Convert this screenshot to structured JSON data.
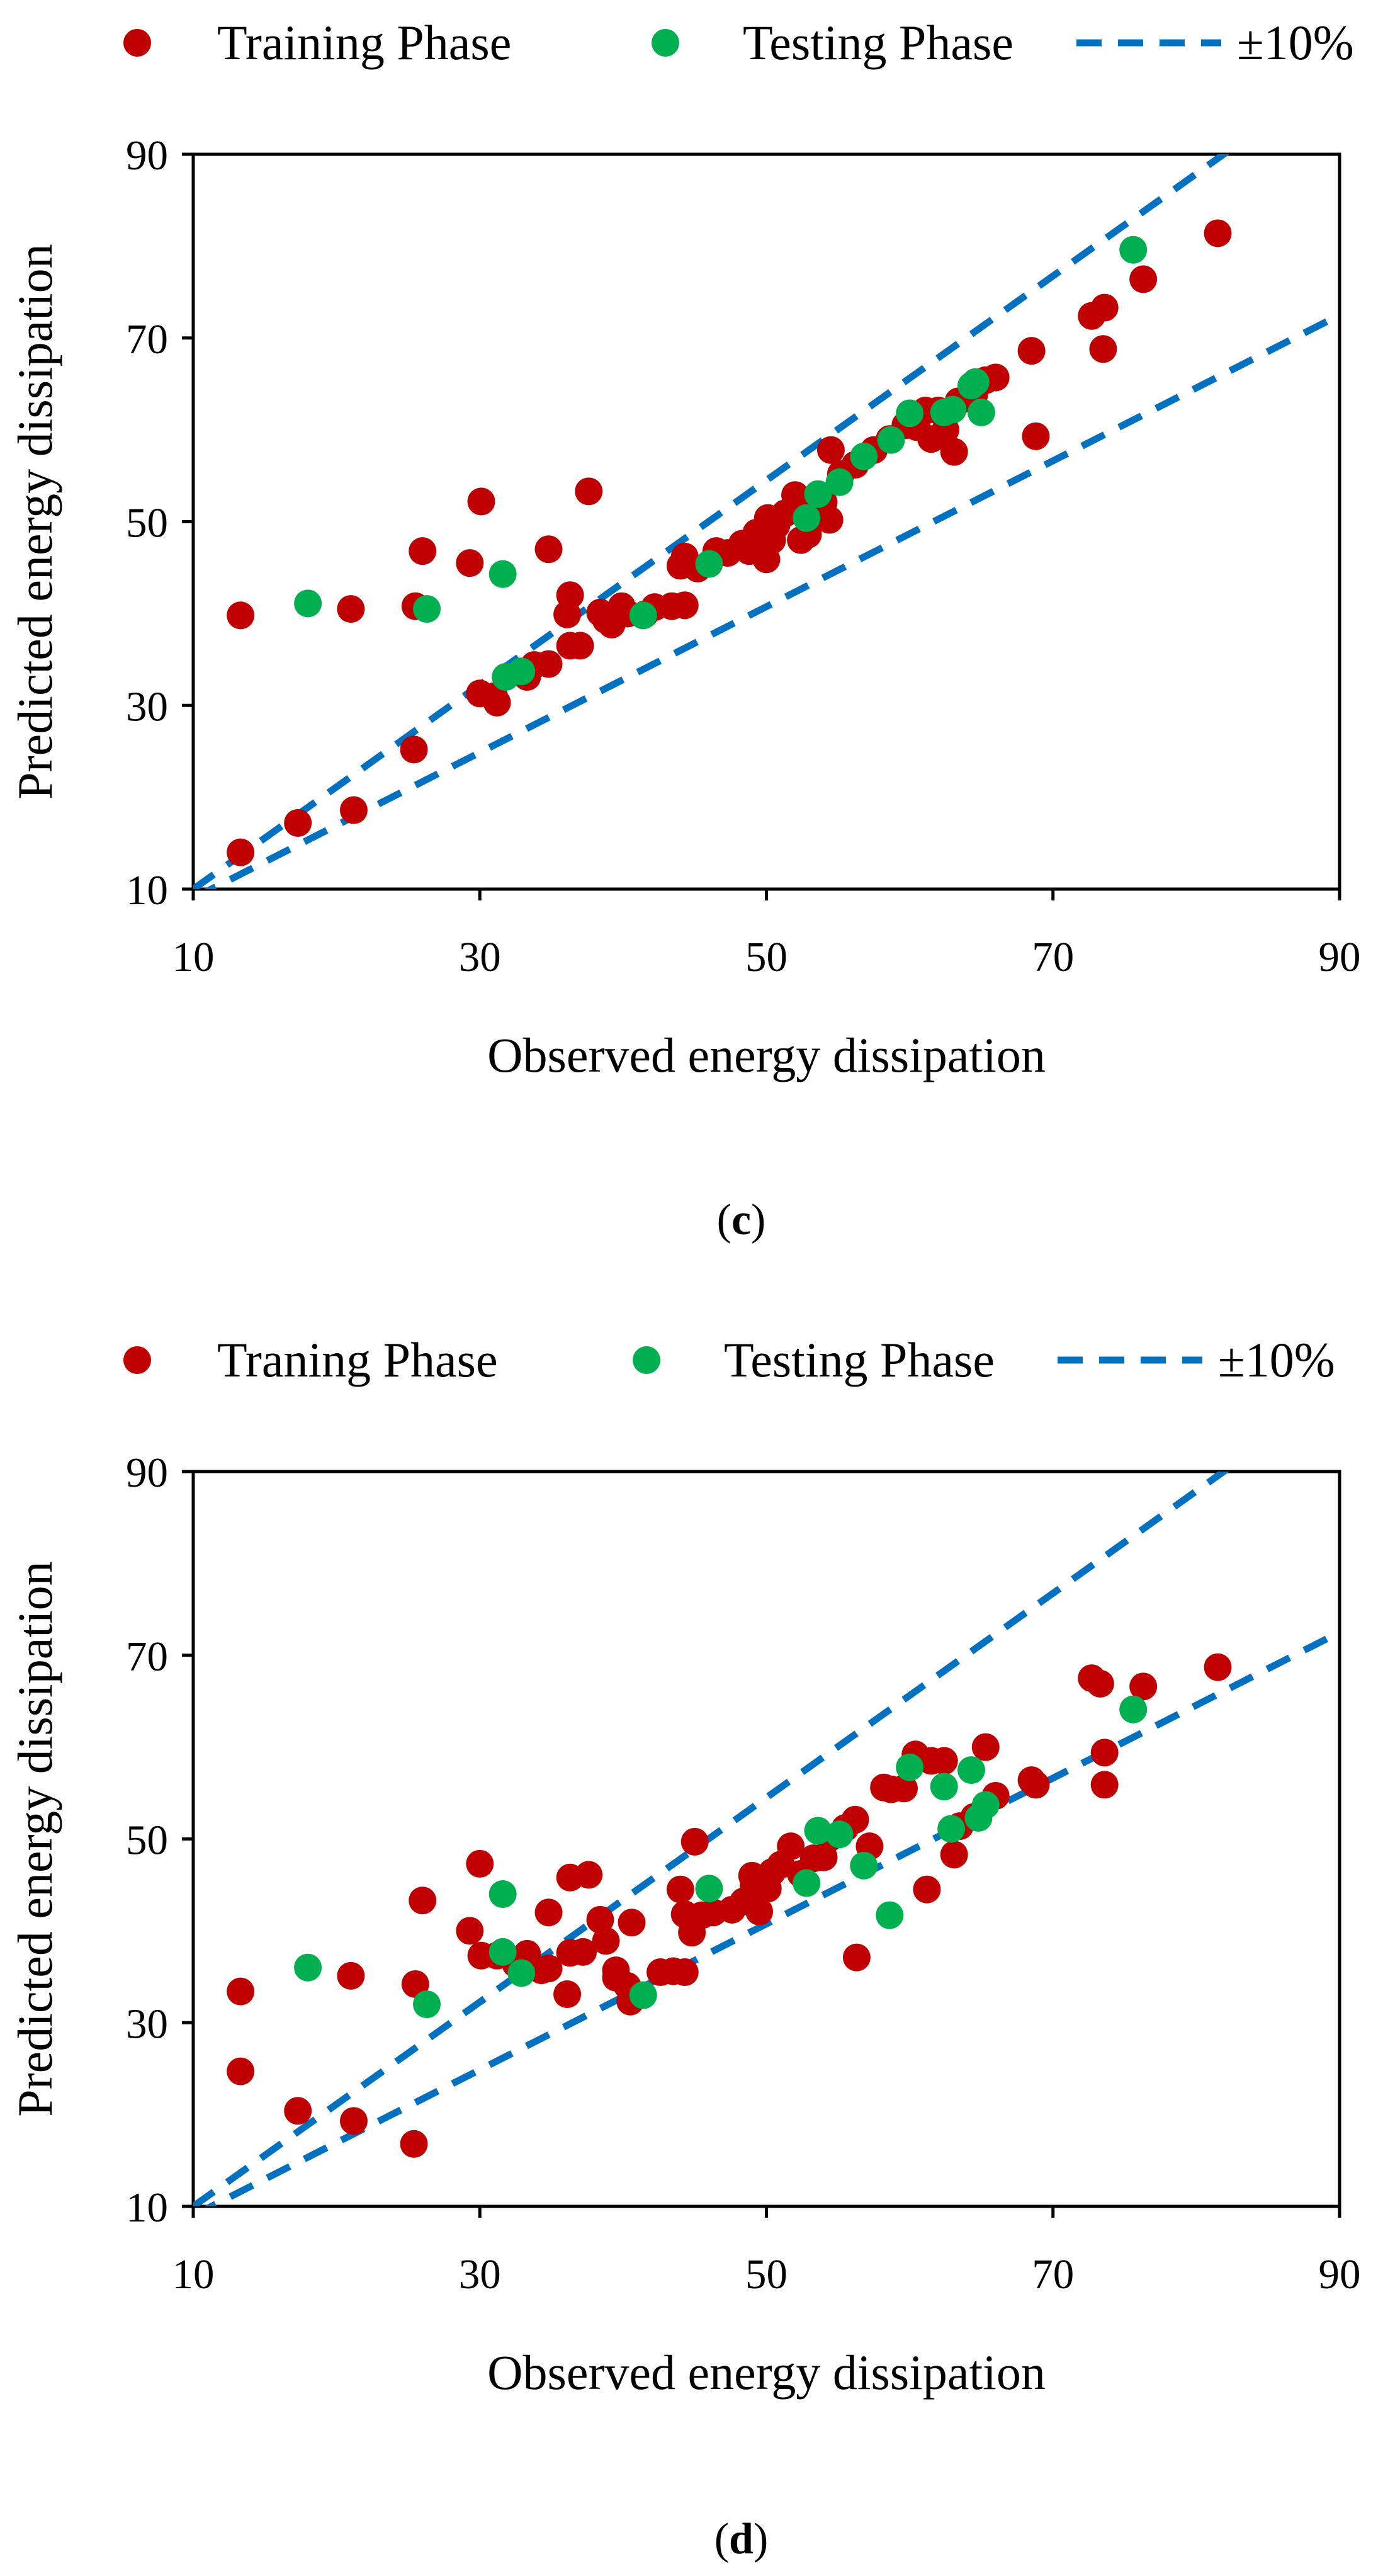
{
  "chart_data": [
    {
      "type": "scatter",
      "caption": {
        "open": "(",
        "letter": "c",
        "close": ")"
      },
      "xlabel": "Observed energy dissipation",
      "ylabel": "Predicted energy dissipation",
      "xlim": [
        10,
        90
      ],
      "ylim": [
        10,
        90
      ],
      "xticks": [
        "10",
        "30",
        "50",
        "70",
        "90"
      ],
      "yticks": [
        "10",
        "30",
        "50",
        "70",
        "90"
      ],
      "grid": false,
      "legend_position": "top",
      "series": [
        {
          "name": "Training Phase",
          "kind": "points",
          "color": "#C00000",
          "points": [
            [
              13.3,
              14.0
            ],
            [
              17.3,
              17.2
            ],
            [
              21.2,
              18.6
            ],
            [
              13.3,
              39.8
            ],
            [
              21.0,
              40.5
            ],
            [
              25.4,
              25.2
            ],
            [
              25.5,
              40.8
            ],
            [
              26.0,
              46.8
            ],
            [
              29.3,
              45.5
            ],
            [
              30.0,
              31.3
            ],
            [
              30.1,
              52.2
            ],
            [
              31.0,
              31.0
            ],
            [
              31.2,
              30.3
            ],
            [
              33.3,
              33.1
            ],
            [
              33.8,
              34.4
            ],
            [
              34.8,
              47.0
            ],
            [
              34.8,
              34.5
            ],
            [
              36.1,
              39.9
            ],
            [
              36.3,
              42.0
            ],
            [
              36.3,
              36.5
            ],
            [
              37.0,
              36.5
            ],
            [
              37.6,
              53.3
            ],
            [
              38.4,
              40.1
            ],
            [
              38.8,
              39.3
            ],
            [
              39.2,
              38.8
            ],
            [
              39.9,
              40.8
            ],
            [
              40.3,
              40.0
            ],
            [
              41.5,
              39.9
            ],
            [
              42.2,
              40.7
            ],
            [
              43.4,
              40.8
            ],
            [
              44.3,
              40.9
            ],
            [
              44.0,
              45.2
            ],
            [
              44.3,
              46.2
            ],
            [
              45.2,
              44.9
            ],
            [
              46.5,
              46.8
            ],
            [
              47.3,
              46.6
            ],
            [
              48.3,
              47.6
            ],
            [
              48.8,
              46.8
            ],
            [
              49.3,
              48.8
            ],
            [
              49.9,
              47.6
            ],
            [
              50.1,
              50.4
            ],
            [
              50.0,
              45.9
            ],
            [
              50.4,
              48.0
            ],
            [
              50.7,
              49.6
            ],
            [
              51.3,
              50.9
            ],
            [
              52.0,
              52.9
            ],
            [
              52.4,
              48.0
            ],
            [
              52.9,
              48.6
            ],
            [
              53.5,
              51.3
            ],
            [
              54.0,
              52.1
            ],
            [
              54.4,
              50.2
            ],
            [
              54.5,
              57.8
            ],
            [
              55.2,
              55.2
            ],
            [
              56.2,
              56.2
            ],
            [
              57.5,
              57.8
            ],
            [
              58.6,
              59.0
            ],
            [
              59.7,
              60.5
            ],
            [
              60.5,
              60.3
            ],
            [
              61.1,
              62.1
            ],
            [
              61.5,
              59.0
            ],
            [
              62.0,
              62.1
            ],
            [
              62.5,
              60.0
            ],
            [
              63.1,
              57.6
            ],
            [
              63.4,
              63.1
            ],
            [
              64.5,
              63.8
            ],
            [
              65.3,
              65.4
            ],
            [
              66.0,
              65.7
            ],
            [
              68.5,
              68.6
            ],
            [
              68.8,
              59.3
            ],
            [
              72.7,
              72.4
            ],
            [
              73.5,
              68.8
            ],
            [
              73.6,
              73.3
            ],
            [
              76.3,
              76.4
            ],
            [
              81.5,
              81.4
            ]
          ]
        },
        {
          "name": "Testing Phase",
          "kind": "points",
          "color": "#00B050",
          "points": [
            [
              18.0,
              41.1
            ],
            [
              26.3,
              40.5
            ],
            [
              31.6,
              44.3
            ],
            [
              31.8,
              33.1
            ],
            [
              32.9,
              33.7
            ],
            [
              41.4,
              39.8
            ],
            [
              46.0,
              45.4
            ],
            [
              52.8,
              50.4
            ],
            [
              53.6,
              53.0
            ],
            [
              55.1,
              54.3
            ],
            [
              56.8,
              57.1
            ],
            [
              58.7,
              58.9
            ],
            [
              60.0,
              61.8
            ],
            [
              62.4,
              61.9
            ],
            [
              63.0,
              62.2
            ],
            [
              64.3,
              64.8
            ],
            [
              64.6,
              65.2
            ],
            [
              65.0,
              61.9
            ],
            [
              75.6,
              79.6
            ]
          ]
        },
        {
          "name": "±10%",
          "kind": "dashed-lines",
          "color": "#0070C0",
          "lines": [
            [
              [
                10,
                10
              ],
              [
                90,
                99
              ]
            ],
            [
              [
                10,
                9
              ],
              [
                90,
                72.5
              ]
            ]
          ]
        }
      ]
    },
    {
      "type": "scatter",
      "caption": {
        "open": "(",
        "letter": "d",
        "close": ")"
      },
      "xlabel": "Observed energy dissipation",
      "ylabel": "Predicted energy dissipation",
      "xlim": [
        10,
        90
      ],
      "ylim": [
        10,
        90
      ],
      "xticks": [
        "10",
        "30",
        "50",
        "70",
        "90"
      ],
      "yticks": [
        "10",
        "30",
        "50",
        "70",
        "90"
      ],
      "grid": false,
      "legend_position": "top",
      "series": [
        {
          "name": "Traning Phase",
          "kind": "points",
          "color": "#C00000",
          "points": [
            [
              13.3,
              33.4
            ],
            [
              13.3,
              24.7
            ],
            [
              17.3,
              20.4
            ],
            [
              21.2,
              19.3
            ],
            [
              21.0,
              35.1
            ],
            [
              25.4,
              16.8
            ],
            [
              25.5,
              34.2
            ],
            [
              26.0,
              43.3
            ],
            [
              29.3,
              40.0
            ],
            [
              30.0,
              47.3
            ],
            [
              30.1,
              37.3
            ],
            [
              31.2,
              37.3
            ],
            [
              32.5,
              36.4
            ],
            [
              33.3,
              37.5
            ],
            [
              34.3,
              35.7
            ],
            [
              34.8,
              42.0
            ],
            [
              34.8,
              35.9
            ],
            [
              36.1,
              33.1
            ],
            [
              36.3,
              45.8
            ],
            [
              36.3,
              37.6
            ],
            [
              37.2,
              37.7
            ],
            [
              37.6,
              46.1
            ],
            [
              38.4,
              41.2
            ],
            [
              38.8,
              38.9
            ],
            [
              39.5,
              35.7
            ],
            [
              39.5,
              34.9
            ],
            [
              40.3,
              34.0
            ],
            [
              40.5,
              32.3
            ],
            [
              40.6,
              40.9
            ],
            [
              42.6,
              35.5
            ],
            [
              43.5,
              35.6
            ],
            [
              44.0,
              44.5
            ],
            [
              44.3,
              35.5
            ],
            [
              44.3,
              41.8
            ],
            [
              44.8,
              39.8
            ],
            [
              45.0,
              49.7
            ],
            [
              45.5,
              41.7
            ],
            [
              46.3,
              42.0
            ],
            [
              47.6,
              42.3
            ],
            [
              48.4,
              43.2
            ],
            [
              49.1,
              44.9
            ],
            [
              49.0,
              46.0
            ],
            [
              49.5,
              42.1
            ],
            [
              49.9,
              45.1
            ],
            [
              50.1,
              44.6
            ],
            [
              50.4,
              46.4
            ],
            [
              51.0,
              47.2
            ],
            [
              51.7,
              49.2
            ],
            [
              52.4,
              46.2
            ],
            [
              53.3,
              47.9
            ],
            [
              54.0,
              48.0
            ],
            [
              54.4,
              50.1
            ],
            [
              55.5,
              51.2
            ],
            [
              56.2,
              52.1
            ],
            [
              56.3,
              37.1
            ],
            [
              57.2,
              49.2
            ],
            [
              58.2,
              55.6
            ],
            [
              58.7,
              55.4
            ],
            [
              59.6,
              55.5
            ],
            [
              60.4,
              59.2
            ],
            [
              61.2,
              44.5
            ],
            [
              61.5,
              58.5
            ],
            [
              62.4,
              58.5
            ],
            [
              63.1,
              48.3
            ],
            [
              63.5,
              51.4
            ],
            [
              64.5,
              52.4
            ],
            [
              65.3,
              60.0
            ],
            [
              66.0,
              54.7
            ],
            [
              68.5,
              56.4
            ],
            [
              68.8,
              55.9
            ],
            [
              72.7,
              67.5
            ],
            [
              73.3,
              66.9
            ],
            [
              73.6,
              59.4
            ],
            [
              73.6,
              55.9
            ],
            [
              76.3,
              66.6
            ],
            [
              81.5,
              68.7
            ]
          ]
        },
        {
          "name": "Testing Phase",
          "kind": "points",
          "color": "#00B050",
          "points": [
            [
              18.0,
              36.0
            ],
            [
              26.3,
              32.0
            ],
            [
              31.6,
              37.7
            ],
            [
              31.6,
              44.0
            ],
            [
              32.9,
              35.4
            ],
            [
              41.4,
              33.0
            ],
            [
              46.0,
              44.6
            ],
            [
              52.8,
              45.2
            ],
            [
              53.6,
              50.9
            ],
            [
              55.1,
              50.5
            ],
            [
              56.8,
              47.1
            ],
            [
              58.6,
              41.7
            ],
            [
              60.0,
              57.8
            ],
            [
              62.4,
              55.7
            ],
            [
              62.9,
              51.1
            ],
            [
              64.3,
              57.5
            ],
            [
              64.8,
              52.3
            ],
            [
              65.3,
              53.7
            ],
            [
              75.6,
              64.1
            ]
          ]
        },
        {
          "name": "±10%",
          "kind": "dashed-lines",
          "color": "#0070C0",
          "lines": [
            [
              [
                10,
                10
              ],
              [
                90,
                99
              ]
            ],
            [
              [
                10,
                9
              ],
              [
                90,
                72.5
              ]
            ]
          ]
        }
      ]
    }
  ]
}
